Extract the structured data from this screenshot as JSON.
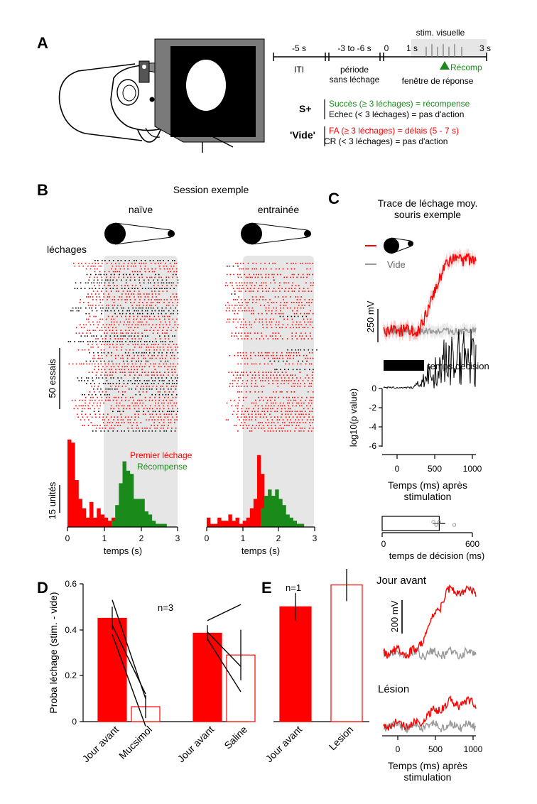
{
  "colors": {
    "red": "#ff0000",
    "green": "#1a8a1a",
    "gray": "#999999",
    "shade": "#e6e6e6"
  },
  "panels": {
    "A": "A",
    "B": "B",
    "C": "C",
    "D": "D",
    "E": "E"
  },
  "panelA": {
    "timeline": {
      "iti_duration": "-5 s",
      "iti_label": "ITI",
      "nolick_duration": "-3 to -6 s",
      "nolick_label_1": "période",
      "nolick_label_2": "sans léchage",
      "zero": "0",
      "one": "1 s",
      "three": "3 s",
      "stim_label": "stim. visuelle",
      "window_label": "fenêtre de réponse",
      "reward_label": "Récomp"
    },
    "rules": {
      "splus_label": "S+",
      "splus_hit": "Succès (≥ 3 léchages) = récompense",
      "splus_miss": "Echec (< 3 léchages) = pas d'action",
      "blank_label": "'Vide'",
      "blank_fa": "FA (≥ 3 léchages) = délais (5 - 7 s)",
      "blank_cr": "CR (< 3 léchages) = pas d'action"
    }
  },
  "panelB": {
    "session_title": "Session exemple",
    "naive_label": "naïve",
    "trained_label": "entrainée",
    "licks_label": "léchages",
    "trials_scale": "50 essais",
    "units_scale": "15 unités",
    "legend_first": "Premier léchage",
    "legend_reward": "Récompense",
    "xlabel": "temps (s)",
    "ticks": [
      "0",
      "1",
      "2",
      "3"
    ]
  },
  "panelC": {
    "title_1": "Trace de léchage moy.",
    "title_2": "souris exemple",
    "legend_blank": "Vide",
    "mv_scale": "250 mV",
    "decision_bar_label": "temps decision",
    "pval_ylabel": "log10(p value)",
    "pval_yticks": [
      "0",
      "-2",
      "-4",
      "-6"
    ],
    "xticks": [
      "0",
      "500",
      "1000"
    ],
    "xlabel_1": "Temps (ms) après",
    "xlabel_2": "stimulation",
    "decision_xticks": [
      "0",
      "600"
    ],
    "decision_xlabel": "temps de décision (ms)"
  },
  "panelD": {
    "ylabel": "Proba léchage (stim. - vide)",
    "yticks": [
      "0",
      "0.2",
      "0.4",
      "0.6"
    ],
    "n_label": "n=3"
  },
  "panelE": {
    "n_label": "n=1",
    "traces_day_before": "Jour avant",
    "traces_lesion": "Lésion",
    "mv_scale": "200 mV",
    "xticks": [
      "0",
      "500",
      "1000"
    ],
    "xlabel_1": "Temps (ms) après",
    "xlabel_2": "stimulation"
  },
  "chart_data": [
    {
      "id": "B-naive-hist",
      "type": "bar",
      "xlabel": "temps (s)",
      "xlim": [
        0,
        3
      ],
      "bin_width": 0.1,
      "series": [
        {
          "name": "Premier léchage",
          "values": [
            28,
            27,
            15,
            9,
            6,
            3,
            8,
            3,
            6,
            4,
            3,
            2,
            3,
            2,
            3,
            5,
            11,
            9,
            8,
            4,
            2,
            2,
            1,
            1,
            1,
            0,
            0,
            0,
            0,
            0
          ]
        },
        {
          "name": "Récompense",
          "values": [
            0,
            0,
            0,
            0,
            0,
            0,
            0,
            0,
            0,
            0,
            0,
            0,
            2,
            7,
            14,
            21,
            18,
            17,
            9,
            9,
            9,
            5,
            4,
            2,
            1,
            1,
            1,
            0,
            0,
            0
          ]
        }
      ]
    },
    {
      "id": "B-trained-hist",
      "type": "bar",
      "xlabel": "temps (s)",
      "xlim": [
        0,
        3
      ],
      "bin_width": 0.1,
      "series": [
        {
          "name": "Premier léchage",
          "values": [
            3,
            1,
            1,
            3,
            2,
            2,
            4,
            2,
            3,
            1,
            2,
            3,
            6,
            9,
            23,
            17,
            10,
            8,
            4,
            3,
            3,
            2,
            2,
            1,
            1,
            1,
            1,
            0,
            0,
            0
          ]
        },
        {
          "name": "Récompense",
          "values": [
            0,
            0,
            0,
            0,
            0,
            0,
            0,
            0,
            0,
            0,
            0,
            0,
            0,
            0,
            0,
            6,
            10,
            12,
            10,
            12,
            9,
            7,
            4,
            3,
            2,
            1,
            1,
            0,
            0,
            0
          ]
        }
      ]
    },
    {
      "id": "C-decision",
      "type": "bar",
      "xlabel": "temps de décision (ms)",
      "xlim": [
        0,
        600
      ],
      "value": 380,
      "error": [
        340,
        420
      ],
      "points": [
        340,
        360,
        380,
        480
      ]
    },
    {
      "id": "D",
      "type": "bar",
      "ylabel": "Proba léchage (stim. - vide)",
      "ylim": [
        0,
        0.6
      ],
      "categories": [
        "Jour avant",
        "Mucsimol",
        "Jour avant",
        "Saline"
      ],
      "values": [
        0.45,
        0.065,
        0.385,
        0.29
      ],
      "errors": [
        0.05,
        0.05,
        0.035,
        0.11
      ],
      "paired_lines": [
        [
          [
            0,
            0.53
          ],
          [
            1,
            0.1
          ]
        ],
        [
          [
            0,
            0.42
          ],
          [
            1,
            0.12
          ]
        ],
        [
          [
            0,
            0.38
          ],
          [
            1,
            -0.02
          ]
        ],
        [
          [
            2,
            0.44
          ],
          [
            3,
            0.51
          ]
        ],
        [
          [
            2,
            0.39
          ],
          [
            3,
            0.24
          ]
        ],
        [
          [
            2,
            0.36
          ],
          [
            3,
            0.13
          ]
        ]
      ]
    },
    {
      "id": "E",
      "type": "bar",
      "categories": [
        "Jour avant",
        "Lesion"
      ],
      "ylim": [
        0,
        0.6
      ],
      "values": [
        0.5,
        0.595
      ],
      "errors": [
        0.06,
        0.07
      ]
    }
  ]
}
